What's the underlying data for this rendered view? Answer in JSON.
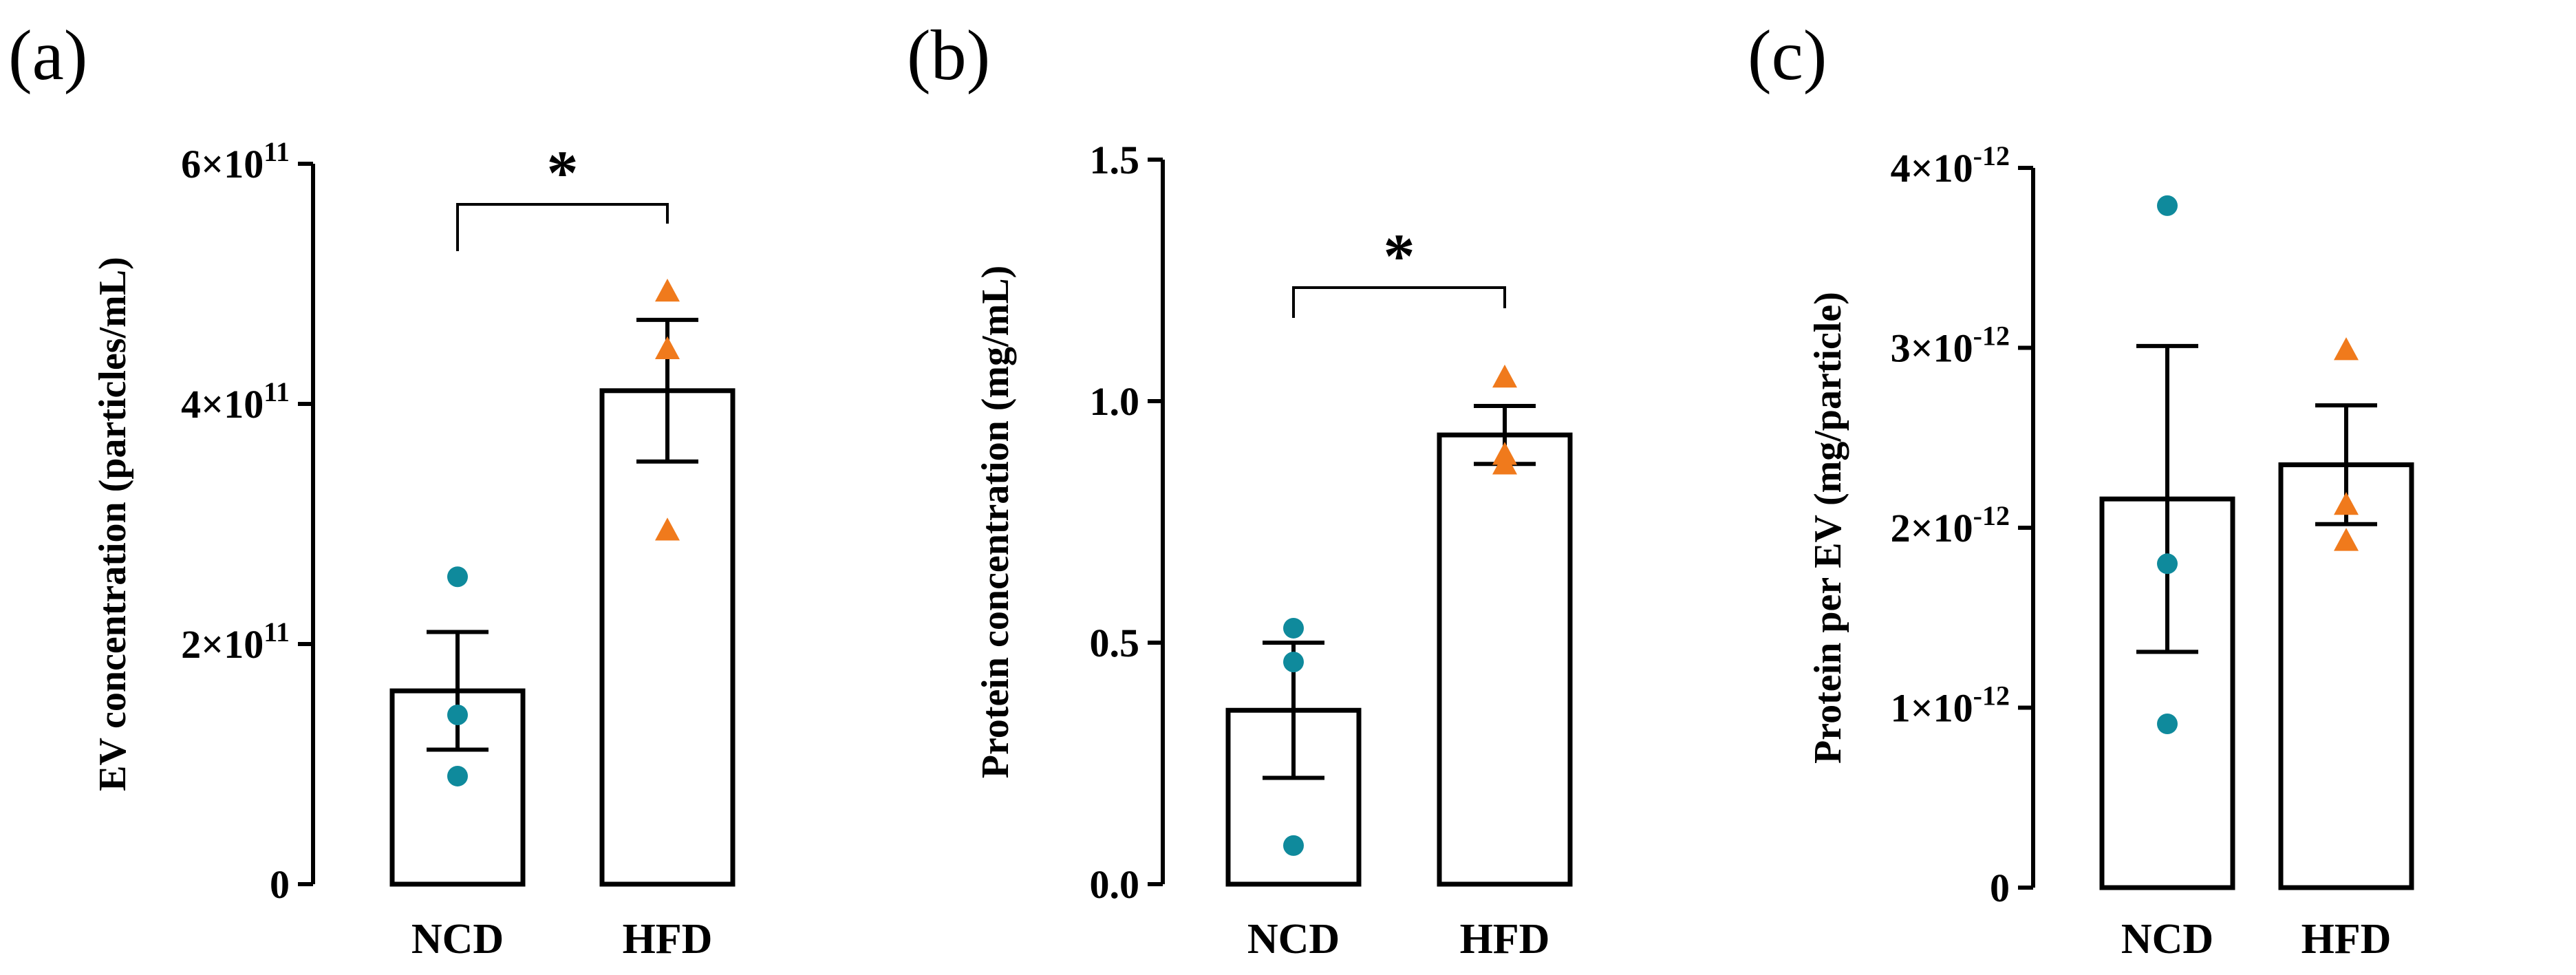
{
  "figure_type": "bar charts with individual data points",
  "colors": {
    "ncd_points": "#0f8a9c",
    "hfd_points": "#f07a1c",
    "bar_fill": "#ffffff",
    "bar_stroke": "#000000",
    "axis": "#000000"
  },
  "chart_data": [
    {
      "panel_label": "(a)",
      "type": "bar",
      "title": "",
      "xlabel": "",
      "ylabel": "EV concentration (particles/mL)",
      "ylim": [
        0,
        600000000000
      ],
      "yticks": [
        0,
        200000000000,
        400000000000,
        600000000000
      ],
      "ytick_labels": [
        {
          "mantissa": "0",
          "exponent": ""
        },
        {
          "mantissa": "2×10",
          "exponent": "11"
        },
        {
          "mantissa": "4×10",
          "exponent": "11"
        },
        {
          "mantissa": "6×10",
          "exponent": "11"
        }
      ],
      "categories": [
        "NCD",
        "HFD"
      ],
      "values": [
        161000000000,
        411000000000
      ],
      "error_sem": [
        49000000000,
        59000000000
      ],
      "points": [
        [
          256000000000,
          141000000000,
          90000000000
        ],
        [
          494000000000,
          446000000000,
          295000000000
        ]
      ],
      "significance": {
        "between": [
          "NCD",
          "HFD"
        ],
        "label": "*"
      }
    },
    {
      "panel_label": "(b)",
      "type": "bar",
      "title": "",
      "xlabel": "",
      "ylabel": "Protein concentration (mg/mL)",
      "ylim": [
        0,
        1.5
      ],
      "yticks": [
        0,
        0.5,
        1.0,
        1.5
      ],
      "ytick_labels": [
        {
          "mantissa": "0.0",
          "exponent": ""
        },
        {
          "mantissa": "0.5",
          "exponent": ""
        },
        {
          "mantissa": "1.0",
          "exponent": ""
        },
        {
          "mantissa": "1.5",
          "exponent": ""
        }
      ],
      "categories": [
        "NCD",
        "HFD"
      ],
      "values": [
        0.36,
        0.93
      ],
      "error_sem": [
        0.14,
        0.06
      ],
      "points": [
        [
          0.53,
          0.46,
          0.08
        ],
        [
          1.05,
          0.87,
          0.89
        ]
      ],
      "significance": {
        "between": [
          "NCD",
          "HFD"
        ],
        "label": "*"
      }
    },
    {
      "panel_label": "(c)",
      "type": "bar",
      "title": "",
      "xlabel": "",
      "ylabel": "Protein per EV (mg/particle)",
      "ylim": [
        0,
        4e-12
      ],
      "yticks": [
        0,
        1e-12,
        2e-12,
        3e-12,
        4e-12
      ],
      "ytick_labels": [
        {
          "mantissa": "0",
          "exponent": ""
        },
        {
          "mantissa": "1×10",
          "exponent": "-12"
        },
        {
          "mantissa": "2×10",
          "exponent": "-12"
        },
        {
          "mantissa": "3×10",
          "exponent": "-12"
        },
        {
          "mantissa": "4×10",
          "exponent": "-12"
        }
      ],
      "categories": [
        "NCD",
        "HFD"
      ],
      "values": [
        2.16e-12,
        2.35e-12
      ],
      "error_sem": [
        8.5e-13,
        3.3e-13
      ],
      "points": [
        [
          3.79e-12,
          1.8e-12,
          9.1e-13
        ],
        [
          2.99e-12,
          2.13e-12,
          1.93e-12
        ]
      ],
      "significance": null
    }
  ]
}
